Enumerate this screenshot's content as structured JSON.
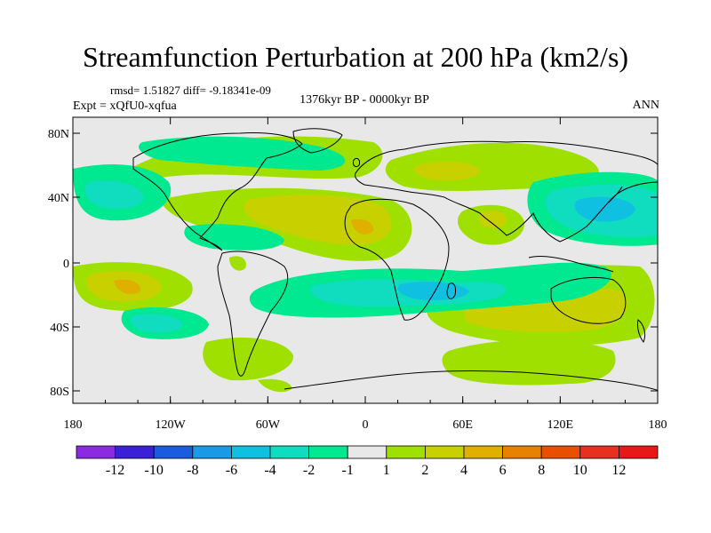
{
  "title": "Streamfunction Perturbation at 200 hPa (km2/s)",
  "stats": "rmsd= 1.51827 diff= -9.18341e-09",
  "experiment": "Expt = xQfU0-xqfua",
  "period": "1376kyr BP - 0000kyr BP",
  "season": "ANN",
  "lat_labels": [
    "80N",
    "40N",
    "0",
    "40S",
    "80S"
  ],
  "lon_labels": [
    "180",
    "120W",
    "60W",
    "0",
    "60E",
    "120E",
    "180"
  ],
  "colorbar": {
    "labels": [
      "-12",
      "-10",
      "-8",
      "-6",
      "-4",
      "-2",
      "-1",
      "1",
      "2",
      "4",
      "6",
      "8",
      "10",
      "12"
    ],
    "colors": [
      "#8a2be2",
      "#3a20d6",
      "#1a5ce0",
      "#1a9ae6",
      "#10c0e0",
      "#10dcc0",
      "#00e890",
      "#e8e8e8",
      "#a0e000",
      "#c8d000",
      "#e0b000",
      "#e88000",
      "#e85000",
      "#e83020",
      "#e81818"
    ]
  },
  "colors": {
    "background": "#e8e8e8",
    "coast": "#000000"
  }
}
